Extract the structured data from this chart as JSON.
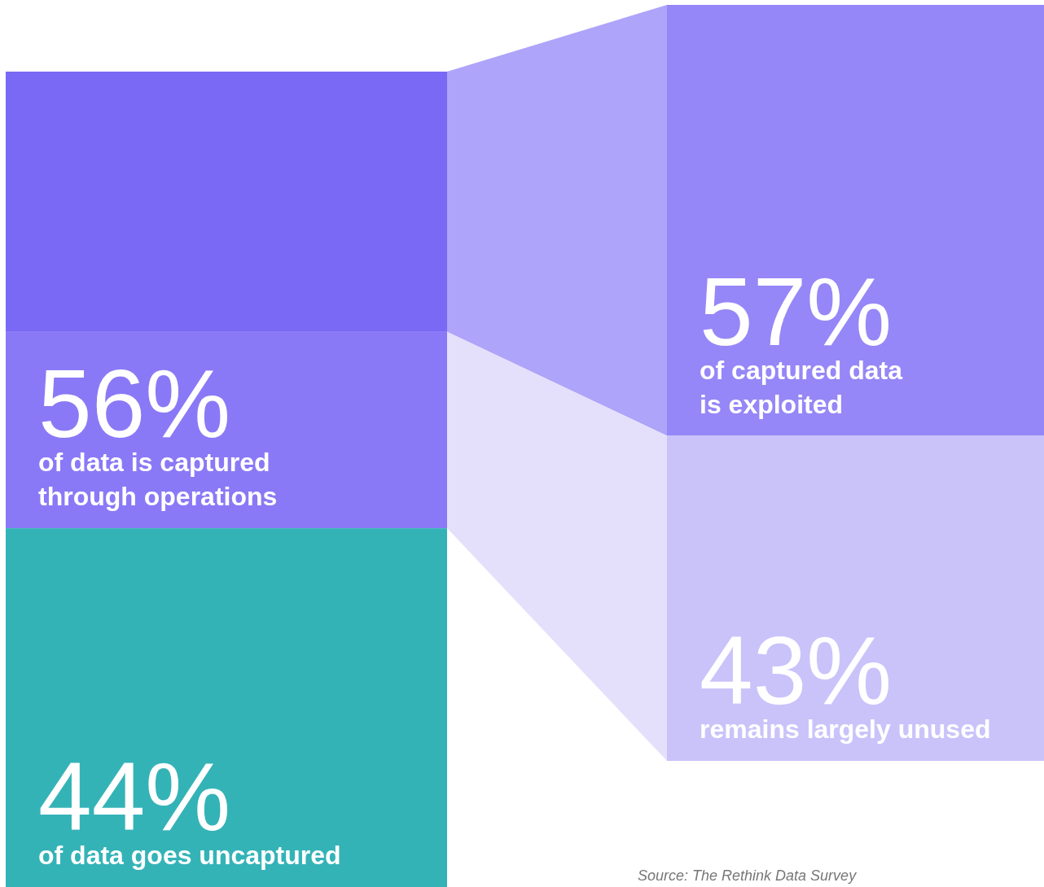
{
  "chart_data": {
    "type": "other",
    "categories": [
      "of data is captured\nthrough operations",
      "of data goes uncaptured",
      "of captured data\nis exploited",
      "remains largely unused"
    ],
    "values": [
      56,
      44,
      57,
      43
    ],
    "value_labels": [
      "56%",
      "44%",
      "57%",
      "43%"
    ],
    "colors": [
      "#8a79f6",
      "#34b3b7",
      "#9587f7",
      "#cac3fa"
    ],
    "data_labels": true,
    "annotations": [
      "Source: The Rethink Data Survey"
    ]
  }
}
